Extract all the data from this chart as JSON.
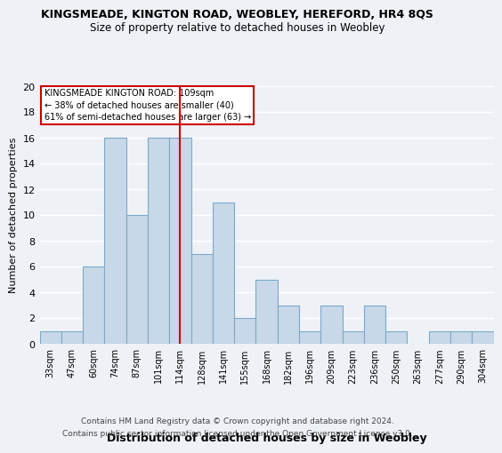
{
  "title": "KINGSMEADE, KINGTON ROAD, WEOBLEY, HEREFORD, HR4 8QS",
  "subtitle": "Size of property relative to detached houses in Weobley",
  "xlabel": "Distribution of detached houses by size in Weobley",
  "ylabel": "Number of detached properties",
  "categories": [
    "33sqm",
    "47sqm",
    "60sqm",
    "74sqm",
    "87sqm",
    "101sqm",
    "114sqm",
    "128sqm",
    "141sqm",
    "155sqm",
    "168sqm",
    "182sqm",
    "196sqm",
    "209sqm",
    "223sqm",
    "236sqm",
    "250sqm",
    "263sqm",
    "277sqm",
    "290sqm",
    "304sqm"
  ],
  "values": [
    1,
    1,
    6,
    16,
    10,
    16,
    16,
    7,
    11,
    2,
    5,
    3,
    1,
    3,
    1,
    3,
    1,
    0,
    1,
    1,
    1
  ],
  "bar_color": "#c8d8e8",
  "bar_edge_color": "#7aaac8",
  "marker_index": 6,
  "marker_color": "#cc0000",
  "annotation_line1": "KINGSMEADE KINGTON ROAD: 109sqm",
  "annotation_line2": "← 38% of detached houses are smaller (40)",
  "annotation_line3": "61% of semi-detached houses are larger (63) →",
  "annotation_box_color": "#cc0000",
  "ylim": [
    0,
    20
  ],
  "yticks": [
    0,
    2,
    4,
    6,
    8,
    10,
    12,
    14,
    16,
    18,
    20
  ],
  "footnote1": "Contains HM Land Registry data © Crown copyright and database right 2024.",
  "footnote2": "Contains public sector information licensed under the Open Government Licence v3.0.",
  "background_color": "#eef2f7",
  "grid_color": "#ffffff"
}
